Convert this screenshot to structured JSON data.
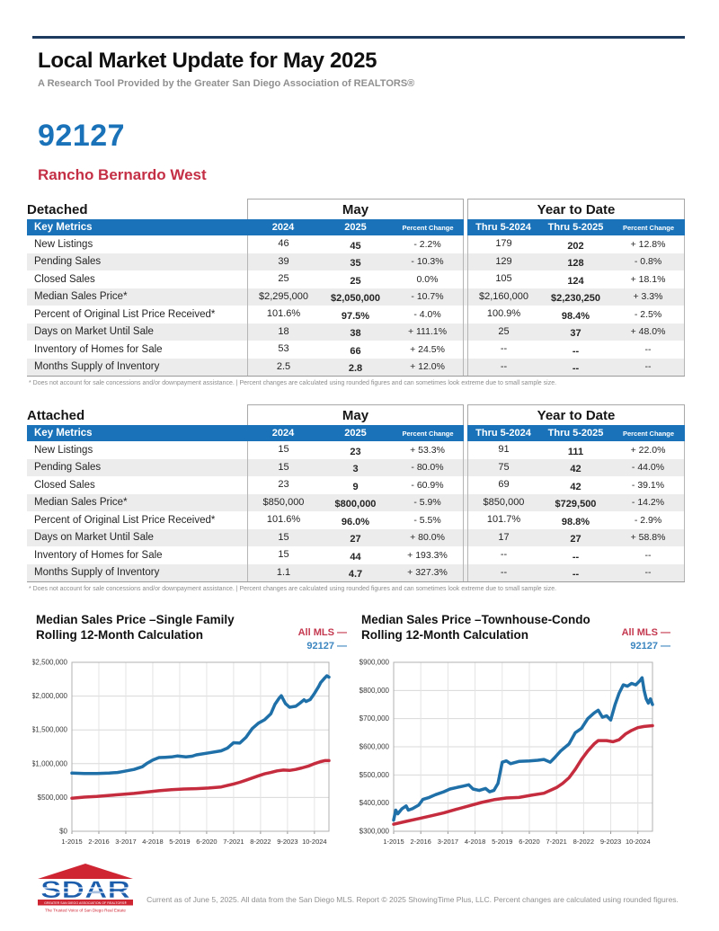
{
  "page": {
    "title": "Local Market Update for May 2025",
    "subtitle": "A Research Tool Provided by the Greater San Diego Association of REALTORS®",
    "zip_code": "92127",
    "area_name": "Rancho Bernardo West"
  },
  "colors": {
    "header_blue": "#1a73b8",
    "zip_blue": "#1a73b8",
    "accent_red": "#c42f45",
    "line_blue": "#1f6fa8",
    "line_red": "#c52c3e",
    "row_alt_gray": "#ececec"
  },
  "tables": [
    {
      "section_label": "Detached",
      "group_headers": [
        "May",
        "Year to Date"
      ],
      "column_headers": [
        "Key Metrics",
        "2024",
        "2025",
        "Percent Change",
        "Thru 5-2024",
        "Thru 5-2025",
        "Percent Change"
      ],
      "rows": [
        {
          "metric": "New Listings",
          "may_2024": "46",
          "may_2025": "45",
          "may_pct": "- 2.2%",
          "ytd_2024": "179",
          "ytd_2025": "202",
          "ytd_pct": "+ 12.8%"
        },
        {
          "metric": "Pending Sales",
          "may_2024": "39",
          "may_2025": "35",
          "may_pct": "- 10.3%",
          "ytd_2024": "129",
          "ytd_2025": "128",
          "ytd_pct": "- 0.8%"
        },
        {
          "metric": "Closed Sales",
          "may_2024": "25",
          "may_2025": "25",
          "may_pct": "0.0%",
          "ytd_2024": "105",
          "ytd_2025": "124",
          "ytd_pct": "+ 18.1%"
        },
        {
          "metric": "Median Sales Price*",
          "may_2024": "$2,295,000",
          "may_2025": "$2,050,000",
          "may_pct": "- 10.7%",
          "ytd_2024": "$2,160,000",
          "ytd_2025": "$2,230,250",
          "ytd_pct": "+ 3.3%"
        },
        {
          "metric": "Percent of Original List Price Received*",
          "may_2024": "101.6%",
          "may_2025": "97.5%",
          "may_pct": "- 4.0%",
          "ytd_2024": "100.9%",
          "ytd_2025": "98.4%",
          "ytd_pct": "- 2.5%"
        },
        {
          "metric": "Days on Market Until Sale",
          "may_2024": "18",
          "may_2025": "38",
          "may_pct": "+ 111.1%",
          "ytd_2024": "25",
          "ytd_2025": "37",
          "ytd_pct": "+ 48.0%"
        },
        {
          "metric": "Inventory of Homes for Sale",
          "may_2024": "53",
          "may_2025": "66",
          "may_pct": "+ 24.5%",
          "ytd_2024": "--",
          "ytd_2025": "--",
          "ytd_pct": "--"
        },
        {
          "metric": "Months Supply of Inventory",
          "may_2024": "2.5",
          "may_2025": "2.8",
          "may_pct": "+ 12.0%",
          "ytd_2024": "--",
          "ytd_2025": "--",
          "ytd_pct": "--"
        }
      ],
      "footnote": "* Does not account for sale concessions and/or downpayment assistance. | Percent changes are calculated using rounded figures and can sometimes look extreme due to small sample size."
    },
    {
      "section_label": "Attached",
      "group_headers": [
        "May",
        "Year to Date"
      ],
      "column_headers": [
        "Key Metrics",
        "2024",
        "2025",
        "Percent Change",
        "Thru 5-2024",
        "Thru 5-2025",
        "Percent Change"
      ],
      "rows": [
        {
          "metric": "New Listings",
          "may_2024": "15",
          "may_2025": "23",
          "may_pct": "+ 53.3%",
          "ytd_2024": "91",
          "ytd_2025": "111",
          "ytd_pct": "+ 22.0%"
        },
        {
          "metric": "Pending Sales",
          "may_2024": "15",
          "may_2025": "3",
          "may_pct": "- 80.0%",
          "ytd_2024": "75",
          "ytd_2025": "42",
          "ytd_pct": "- 44.0%"
        },
        {
          "metric": "Closed Sales",
          "may_2024": "23",
          "may_2025": "9",
          "may_pct": "- 60.9%",
          "ytd_2024": "69",
          "ytd_2025": "42",
          "ytd_pct": "- 39.1%"
        },
        {
          "metric": "Median Sales Price*",
          "may_2024": "$850,000",
          "may_2025": "$800,000",
          "may_pct": "- 5.9%",
          "ytd_2024": "$850,000",
          "ytd_2025": "$729,500",
          "ytd_pct": "- 14.2%"
        },
        {
          "metric": "Percent of Original List Price Received*",
          "may_2024": "101.6%",
          "may_2025": "96.0%",
          "may_pct": "- 5.5%",
          "ytd_2024": "101.7%",
          "ytd_2025": "98.8%",
          "ytd_pct": "- 2.9%"
        },
        {
          "metric": "Days on Market Until Sale",
          "may_2024": "15",
          "may_2025": "27",
          "may_pct": "+ 80.0%",
          "ytd_2024": "17",
          "ytd_2025": "27",
          "ytd_pct": "+ 58.8%"
        },
        {
          "metric": "Inventory of Homes for Sale",
          "may_2024": "15",
          "may_2025": "44",
          "may_pct": "+ 193.3%",
          "ytd_2024": "--",
          "ytd_2025": "--",
          "ytd_pct": "--"
        },
        {
          "metric": "Months Supply of Inventory",
          "may_2024": "1.1",
          "may_2025": "4.7",
          "may_pct": "+ 327.3%",
          "ytd_2024": "--",
          "ytd_2025": "--",
          "ytd_pct": "--"
        }
      ],
      "footnote": "* Does not account for sale concessions and/or downpayment assistance. | Percent changes are calculated using rounded figures and can sometimes look extreme due to small sample size."
    }
  ],
  "chart_data": [
    {
      "type": "line",
      "title": "Median Sales Price –Single Family",
      "subtitle": "Rolling 12-Month Calculation",
      "legend": [
        {
          "label": "All MLS —",
          "color": "#c52c3e"
        },
        {
          "label": "92127 —",
          "color": "#1f6fa8"
        }
      ],
      "x_unit": "months since 1-2015",
      "x_max": 124,
      "x_tick_positions": [
        0,
        13,
        26,
        39,
        52,
        65,
        78,
        91,
        104,
        117
      ],
      "x_tick_labels": [
        "1-2015",
        "2-2016",
        "3-2017",
        "4-2018",
        "5-2019",
        "6-2020",
        "7-2021",
        "8-2022",
        "9-2023",
        "10-2024"
      ],
      "y_min": 0,
      "y_max": 2500000,
      "y_tick_labels": [
        "$0",
        "$500,000",
        "$1,000,000",
        "$1,500,000",
        "$2,000,000",
        "$2,500,000"
      ],
      "series": [
        {
          "name": "All MLS",
          "color": "#c52c3e",
          "points": [
            [
              0,
              490000
            ],
            [
              6,
              505000
            ],
            [
              12,
              515000
            ],
            [
              18,
              530000
            ],
            [
              24,
              545000
            ],
            [
              30,
              560000
            ],
            [
              36,
              580000
            ],
            [
              42,
              600000
            ],
            [
              48,
              615000
            ],
            [
              54,
              625000
            ],
            [
              60,
              630000
            ],
            [
              66,
              640000
            ],
            [
              72,
              655000
            ],
            [
              78,
              700000
            ],
            [
              81,
              725000
            ],
            [
              84,
              755000
            ],
            [
              90,
              820000
            ],
            [
              93,
              850000
            ],
            [
              96,
              870000
            ],
            [
              99,
              893000
            ],
            [
              102,
              905000
            ],
            [
              105,
              900000
            ],
            [
              108,
              915000
            ],
            [
              111,
              938000
            ],
            [
              114,
              963000
            ],
            [
              117,
              1000000
            ],
            [
              120,
              1030000
            ],
            [
              122,
              1045000
            ],
            [
              124,
              1045000
            ]
          ]
        },
        {
          "name": "92127",
          "color": "#1f6fa8",
          "points": [
            [
              0,
              860000
            ],
            [
              6,
              855000
            ],
            [
              12,
              855000
            ],
            [
              18,
              860000
            ],
            [
              22,
              870000
            ],
            [
              24,
              880000
            ],
            [
              30,
              915000
            ],
            [
              34,
              955000
            ],
            [
              36,
              1000000
            ],
            [
              39,
              1055000
            ],
            [
              42,
              1090000
            ],
            [
              45,
              1095000
            ],
            [
              48,
              1100000
            ],
            [
              51,
              1115000
            ],
            [
              55,
              1100000
            ],
            [
              58,
              1110000
            ],
            [
              60,
              1130000
            ],
            [
              66,
              1160000
            ],
            [
              72,
              1190000
            ],
            [
              75,
              1230000
            ],
            [
              78,
              1310000
            ],
            [
              81,
              1305000
            ],
            [
              84,
              1390000
            ],
            [
              87,
              1520000
            ],
            [
              90,
              1600000
            ],
            [
              93,
              1650000
            ],
            [
              96,
              1740000
            ],
            [
              98,
              1880000
            ],
            [
              100,
              1970000
            ],
            [
              101,
              2005000
            ],
            [
              103,
              1890000
            ],
            [
              105,
              1835000
            ],
            [
              108,
              1850000
            ],
            [
              110,
              1895000
            ],
            [
              112,
              1945000
            ],
            [
              113,
              1920000
            ],
            [
              115,
              1950000
            ],
            [
              117,
              2040000
            ],
            [
              119,
              2140000
            ],
            [
              120,
              2200000
            ],
            [
              122,
              2270000
            ],
            [
              123,
              2300000
            ],
            [
              124,
              2280000
            ]
          ]
        }
      ]
    },
    {
      "type": "line",
      "title": "Median Sales Price –Townhouse-Condo",
      "subtitle": "Rolling 12-Month Calculation",
      "legend": [
        {
          "label": "All MLS —",
          "color": "#c52c3e"
        },
        {
          "label": "92127 —",
          "color": "#1f6fa8"
        }
      ],
      "x_unit": "months since 1-2015",
      "x_max": 124,
      "x_tick_positions": [
        0,
        13,
        26,
        39,
        52,
        65,
        78,
        91,
        104,
        117
      ],
      "x_tick_labels": [
        "1-2015",
        "2-2016",
        "3-2017",
        "4-2018",
        "5-2019",
        "6-2020",
        "7-2021",
        "8-2022",
        "9-2023",
        "10-2024"
      ],
      "y_min": 300000,
      "y_max": 900000,
      "y_tick_labels": [
        "$300,000",
        "$400,000",
        "$500,000",
        "$600,000",
        "$700,000",
        "$800,000",
        "$900,000"
      ],
      "series": [
        {
          "name": "All MLS",
          "color": "#c52c3e",
          "points": [
            [
              0,
              325000
            ],
            [
              6,
              335000
            ],
            [
              12,
              345000
            ],
            [
              18,
              355000
            ],
            [
              24,
              365000
            ],
            [
              30,
              378000
            ],
            [
              36,
              390000
            ],
            [
              42,
              402000
            ],
            [
              48,
              412000
            ],
            [
              54,
              418000
            ],
            [
              60,
              420000
            ],
            [
              66,
              428000
            ],
            [
              72,
              435000
            ],
            [
              78,
              455000
            ],
            [
              81,
              470000
            ],
            [
              84,
              490000
            ],
            [
              87,
              520000
            ],
            [
              90,
              555000
            ],
            [
              93,
              585000
            ],
            [
              96,
              610000
            ],
            [
              98,
              622000
            ],
            [
              102,
              622000
            ],
            [
              105,
              618000
            ],
            [
              108,
              625000
            ],
            [
              111,
              645000
            ],
            [
              114,
              658000
            ],
            [
              117,
              668000
            ],
            [
              120,
              672000
            ],
            [
              124,
              675000
            ]
          ]
        },
        {
          "name": "92127",
          "color": "#1f6fa8",
          "points": [
            [
              0,
              340000
            ],
            [
              1,
              375000
            ],
            [
              2,
              362000
            ],
            [
              4,
              380000
            ],
            [
              6,
              390000
            ],
            [
              7,
              375000
            ],
            [
              9,
              380000
            ],
            [
              12,
              393000
            ],
            [
              14,
              413000
            ],
            [
              17,
              420000
            ],
            [
              20,
              430000
            ],
            [
              24,
              440000
            ],
            [
              27,
              450000
            ],
            [
              30,
              455000
            ],
            [
              33,
              460000
            ],
            [
              36,
              465000
            ],
            [
              38,
              450000
            ],
            [
              41,
              445000
            ],
            [
              44,
              452000
            ],
            [
              46,
              440000
            ],
            [
              48,
              445000
            ],
            [
              50,
              470000
            ],
            [
              52,
              545000
            ],
            [
              54,
              550000
            ],
            [
              56,
              540000
            ],
            [
              60,
              548000
            ],
            [
              65,
              550000
            ],
            [
              69,
              552000
            ],
            [
              72,
              555000
            ],
            [
              75,
              545000
            ],
            [
              77,
              560000
            ],
            [
              80,
              585000
            ],
            [
              84,
              610000
            ],
            [
              87,
              650000
            ],
            [
              90,
              665000
            ],
            [
              93,
              700000
            ],
            [
              96,
              720000
            ],
            [
              98,
              730000
            ],
            [
              100,
              705000
            ],
            [
              102,
              710000
            ],
            [
              104,
              695000
            ],
            [
              106,
              748000
            ],
            [
              108,
              790000
            ],
            [
              110,
              820000
            ],
            [
              112,
              815000
            ],
            [
              114,
              825000
            ],
            [
              116,
              820000
            ],
            [
              118,
              835000
            ],
            [
              119,
              845000
            ],
            [
              120,
              800000
            ],
            [
              121,
              770000
            ],
            [
              122,
              755000
            ],
            [
              123,
              770000
            ],
            [
              124,
              750000
            ]
          ]
        }
      ]
    }
  ],
  "footer": {
    "logo": {
      "name": "SDAR",
      "bar_text": "GREATER SAN DIEGO ASSOCIATION OF REALTORS®",
      "tagline": "The Trusted Voice of San Diego Real Estate"
    },
    "disclaimer": "Current as of June 5, 2025. All data from the San Diego MLS. Report © 2025 ShowingTime Plus, LLC. Percent changes are calculated using rounded figures."
  }
}
